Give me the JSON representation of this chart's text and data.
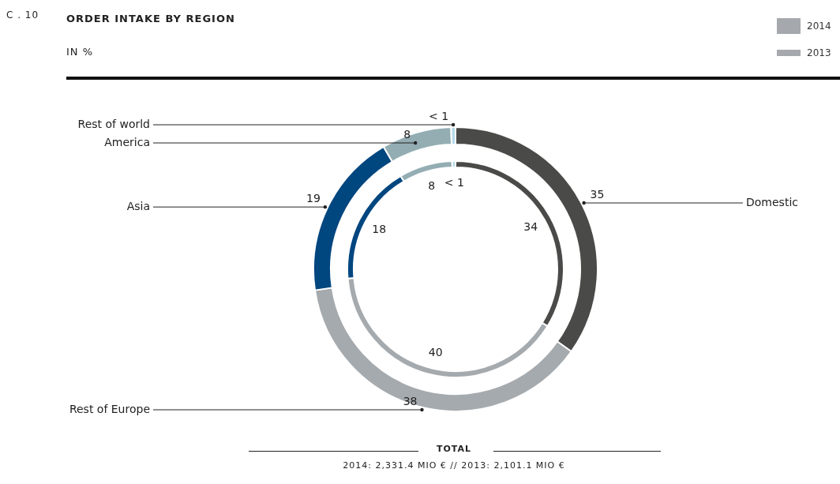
{
  "chart_data": {
    "type": "donut",
    "title": "ORDER INTAKE BY REGION",
    "subtitle": "IN %",
    "categories": [
      "Domestic",
      "Rest of Europe",
      "Asia",
      "America",
      "Rest of world"
    ],
    "colors": [
      "#4a4a48",
      "#a5aaae",
      "#00467f",
      "#93adb3",
      "#b4d9e8"
    ],
    "series": [
      {
        "name": "2014",
        "color": "#a5a9ad",
        "values": [
          35,
          38,
          19,
          8,
          0.5
        ],
        "value_labels": [
          "35",
          "38",
          "19",
          "8",
          "< 1"
        ]
      },
      {
        "name": "2013",
        "color": "#a5a9ad",
        "values": [
          34,
          40,
          18,
          8,
          0.5
        ],
        "value_labels": [
          "34",
          "40",
          "18",
          "8",
          "< 1"
        ]
      }
    ],
    "legend": "top right",
    "annotations": [
      "C . 10",
      "TOTAL",
      "2014: 2,331.4 MIO € // 2013: 2,101.1 MIO €"
    ]
  }
}
